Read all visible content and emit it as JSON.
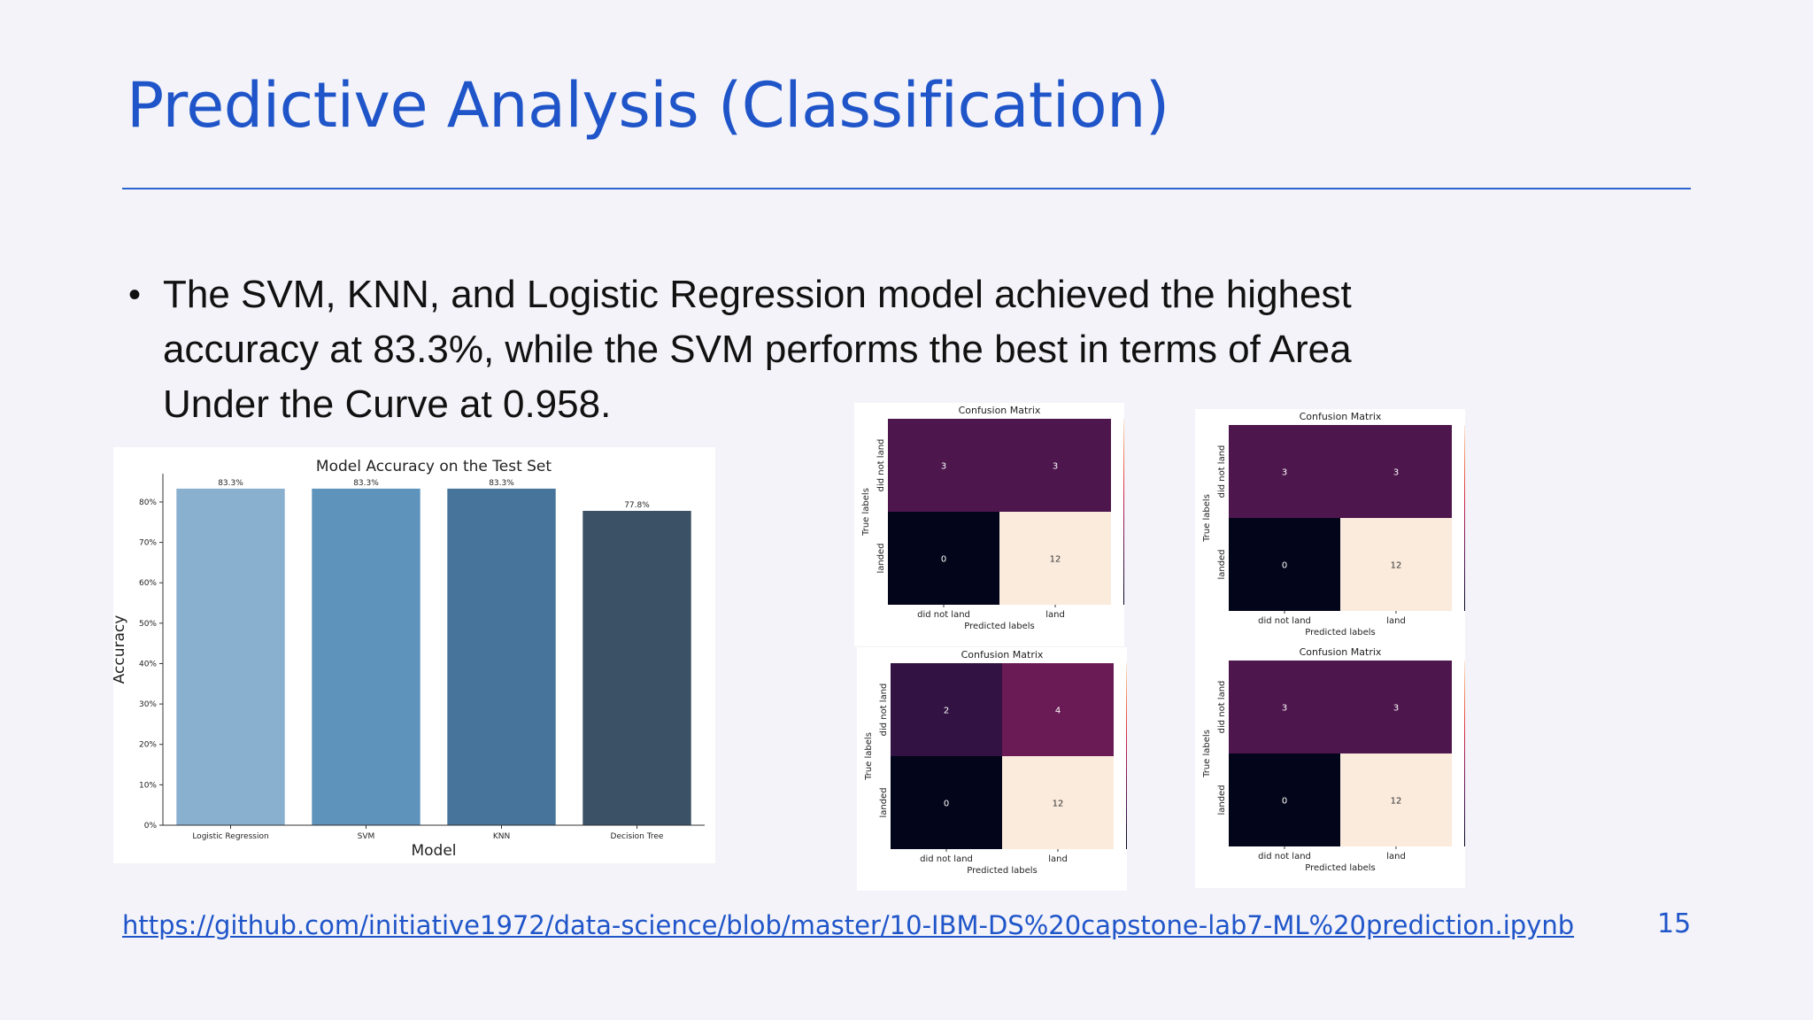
{
  "slide": {
    "title": "Predictive Analysis (Classification)",
    "bullet": "The SVM, KNN, and Logistic Regression model achieved the highest accuracy at 83.3%, while the SVM performs the best in terms of Area Under the Curve at 0.958.",
    "bullet_symbol": "•",
    "link": "https://github.com/initiative1972/data-science/blob/master/10-IBM-DS%20capstone-lab7-ML%20prediction.ipynb",
    "page_number": "15",
    "colors": {
      "title": "#1f55c9",
      "rule": "#2e63d2",
      "background": "#f3f3f9"
    }
  },
  "chart_data": [
    {
      "type": "bar",
      "title": "Model Accuracy on the Test Set",
      "xlabel": "Model",
      "ylabel": "Accuracy",
      "categories": [
        "Logistic Regression",
        "SVM",
        "KNN",
        "Decision Tree"
      ],
      "values": [
        83.3,
        83.3,
        83.3,
        77.8
      ],
      "data_labels": [
        "83.3%",
        "83.3%",
        "83.3%",
        "77.8%"
      ],
      "colors": [
        "#8ab0d0",
        "#5e93bc",
        "#46749a",
        "#3b5166"
      ],
      "ylim": [
        0,
        87
      ],
      "yticks": [
        0,
        10,
        20,
        30,
        40,
        50,
        60,
        70,
        80
      ],
      "ytick_labels": [
        "0%",
        "10%",
        "20%",
        "30%",
        "40%",
        "50%",
        "60%",
        "70%",
        "80%"
      ],
      "grid": false,
      "legend": "none"
    },
    {
      "type": "heatmap",
      "title": "Confusion Matrix",
      "xlabel": "Predicted labels",
      "ylabel": "True labels",
      "x_categories": [
        "did not land",
        "land"
      ],
      "y_categories": [
        "did not land",
        "landed"
      ],
      "values": [
        [
          3,
          3
        ],
        [
          0,
          12
        ]
      ],
      "colorbar_range": [
        0,
        12
      ],
      "colorbar_ticks": [
        0,
        2,
        4,
        6,
        8,
        10,
        12
      ]
    },
    {
      "type": "heatmap",
      "title": "Confusion Matrix",
      "xlabel": "Predicted labels",
      "ylabel": "True labels",
      "x_categories": [
        "did not land",
        "land"
      ],
      "y_categories": [
        "did not land",
        "landed"
      ],
      "values": [
        [
          3,
          3
        ],
        [
          0,
          12
        ]
      ],
      "colorbar_range": [
        0,
        12
      ],
      "colorbar_ticks": [
        0,
        2,
        4,
        6,
        8,
        10,
        12
      ]
    },
    {
      "type": "heatmap",
      "title": "Confusion Matrix",
      "xlabel": "Predicted labels",
      "ylabel": "True labels",
      "x_categories": [
        "did not land",
        "land"
      ],
      "y_categories": [
        "did not land",
        "landed"
      ],
      "values": [
        [
          2,
          4
        ],
        [
          0,
          12
        ]
      ],
      "colorbar_range": [
        0,
        12
      ],
      "colorbar_ticks": [
        0,
        2,
        4,
        6,
        8,
        10,
        12
      ]
    },
    {
      "type": "heatmap",
      "title": "Confusion Matrix",
      "xlabel": "Predicted labels",
      "ylabel": "True labels",
      "x_categories": [
        "did not land",
        "land"
      ],
      "y_categories": [
        "did not land",
        "landed"
      ],
      "values": [
        [
          3,
          3
        ],
        [
          0,
          12
        ]
      ],
      "colorbar_range": [
        0,
        12
      ],
      "colorbar_ticks": [
        0,
        2,
        4,
        6,
        8,
        10,
        12
      ]
    }
  ]
}
